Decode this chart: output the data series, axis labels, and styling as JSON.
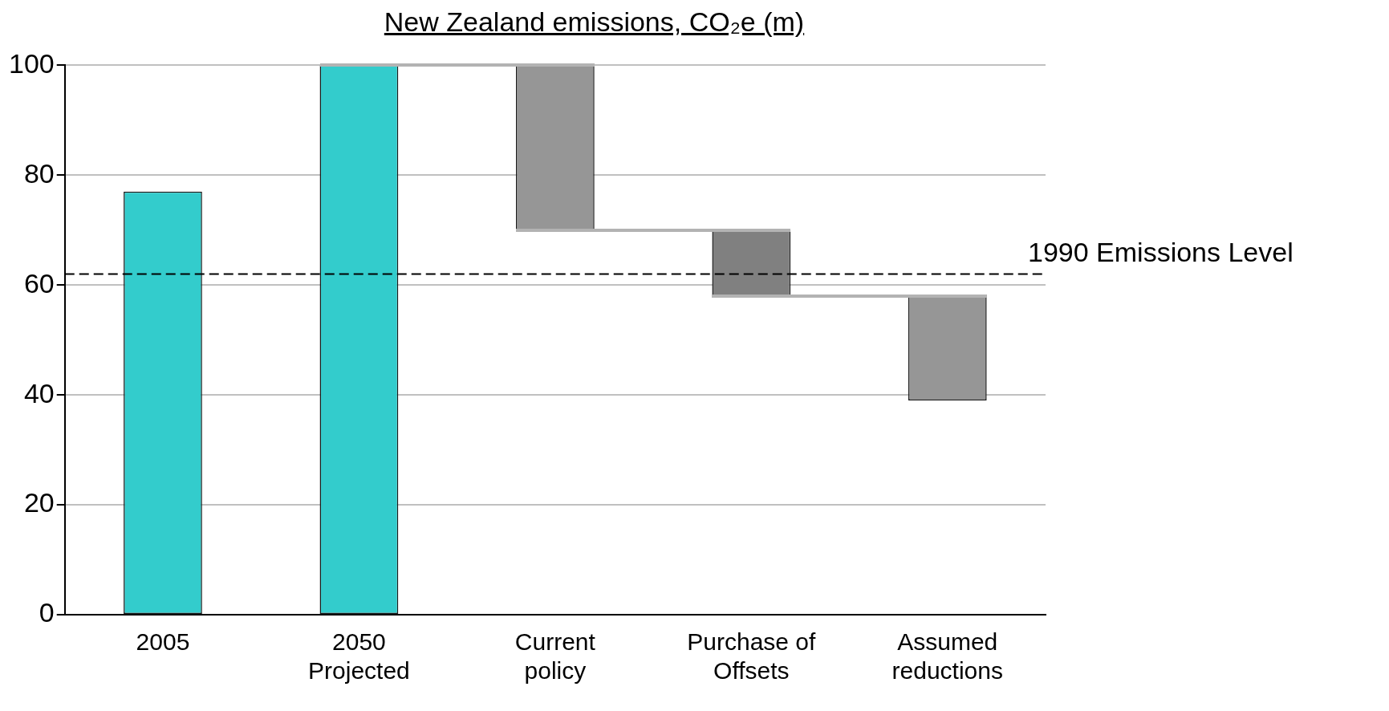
{
  "chart_data": {
    "type": "bar",
    "title": "New Zealand emissions, CO₂e (m)",
    "categories": [
      "2005",
      "2050\nProjected",
      "Current\npolicy",
      "Purchase of\nOffsets",
      "Assumed\nreductions"
    ],
    "values": [
      77,
      100,
      -30,
      -12,
      -19
    ],
    "base": [
      0,
      0,
      100,
      70,
      58
    ],
    "colors": [
      "#33cccc",
      "#33cccc",
      "#969696",
      "#808080",
      "#969696"
    ],
    "ylim": [
      0,
      100
    ],
    "yticks": [
      0,
      20,
      40,
      60,
      80,
      100
    ],
    "grid": "y",
    "legend": false,
    "ref_lines": [
      {
        "axis": "y",
        "value": 62,
        "label": "1990 Emissions Level",
        "color": "#000000",
        "line_style": "dashed"
      }
    ]
  }
}
